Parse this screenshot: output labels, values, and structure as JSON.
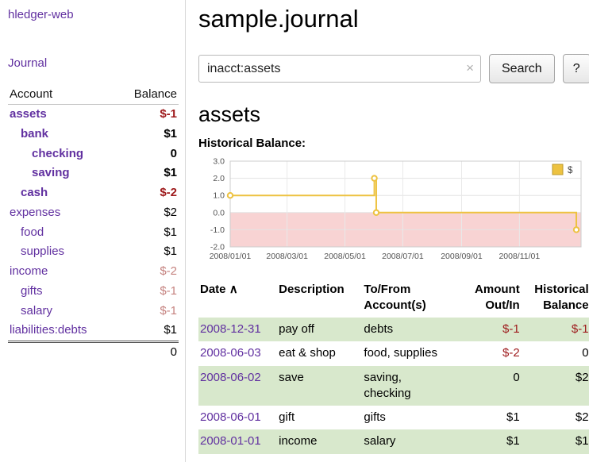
{
  "colors": {
    "link_purple": "#6130a0",
    "negative_strong": "#9e1a1c",
    "negative_faded": "#c5827f",
    "row_green": "#d8e8cc",
    "chart_line": "#edc240",
    "chart_negative_region": "#f8d3d3"
  },
  "sidebar": {
    "app_title": "hledger-web",
    "journal_link": "Journal",
    "accounts": {
      "header_account": "Account",
      "header_balance": "Balance",
      "rows": [
        {
          "name": "assets",
          "balance": "$-1",
          "indent": 0,
          "bold": true
        },
        {
          "name": "bank",
          "balance": "$1",
          "indent": 1,
          "bold": true
        },
        {
          "name": "checking",
          "balance": "0",
          "indent": 2,
          "bold": true
        },
        {
          "name": "saving",
          "balance": "$1",
          "indent": 2,
          "bold": true
        },
        {
          "name": "cash",
          "balance": "$-2",
          "indent": 1,
          "bold": true
        },
        {
          "name": "expenses",
          "balance": "$2",
          "indent": 0,
          "bold": false
        },
        {
          "name": "food",
          "balance": "$1",
          "indent": 1,
          "bold": false
        },
        {
          "name": "supplies",
          "balance": "$1",
          "indent": 1,
          "bold": false
        },
        {
          "name": "income",
          "balance": "$-2",
          "indent": 0,
          "bold": false
        },
        {
          "name": "gifts",
          "balance": "$-1",
          "indent": 1,
          "bold": false
        },
        {
          "name": "salary",
          "balance": "$-1",
          "indent": 1,
          "bold": false
        },
        {
          "name": "liabilities:debts",
          "balance": "$1",
          "indent": 0,
          "bold": false
        }
      ],
      "total": "0"
    }
  },
  "main": {
    "page_title": "sample.journal",
    "search": {
      "value": "inacct:assets",
      "clear_icon": "×",
      "search_button": "Search",
      "help_button": "?"
    },
    "account_heading": "assets",
    "chart_title": "Historical Balance:"
  },
  "chart_data": {
    "type": "line",
    "title": "Historical Balance:",
    "step": true,
    "series": [
      {
        "name": "$",
        "color": "#edc240",
        "points": [
          [
            "2008-01-01",
            1
          ],
          [
            "2008-06-01",
            2
          ],
          [
            "2008-06-03",
            0
          ],
          [
            "2008-12-31",
            -1
          ]
        ]
      }
    ],
    "ylim": [
      -2,
      3
    ],
    "yticks": [
      "3.0",
      "2.0",
      "1.0",
      "0.0",
      "-1.0",
      "-2.0"
    ],
    "xtick_labels": [
      "2008/01/01",
      "2008/03/01",
      "2008/05/01",
      "2008/07/01",
      "2008/09/01",
      "2008/11/01"
    ],
    "xtick_dates": [
      "2008-01-01",
      "2008-03-01",
      "2008-05-01",
      "2008-07-01",
      "2008-09-01",
      "2008-11-01"
    ],
    "x_range": [
      "2008-01-01",
      "2009-01-05"
    ],
    "grid": true,
    "legend_position": "top-right",
    "legend": [
      "$"
    ],
    "negative_region": {
      "from": 0,
      "to": -2,
      "color": "#f8d3d3"
    }
  },
  "register": {
    "headers": {
      "date": "Date",
      "sort_caret": "∧",
      "description": "Description",
      "tofrom": "To/From\nAccount(s)",
      "amount": "Amount\nOut/In",
      "balance": "Historical\nBalance"
    },
    "rows": [
      {
        "date": "2008-12-31",
        "description": "pay off",
        "tofrom": "debts",
        "amount": "$-1",
        "balance": "$-1"
      },
      {
        "date": "2008-06-03",
        "description": "eat & shop",
        "tofrom": "food, supplies",
        "amount": "$-2",
        "balance": "0"
      },
      {
        "date": "2008-06-02",
        "description": "save",
        "tofrom": "saving,\nchecking",
        "amount": "0",
        "balance": "$2"
      },
      {
        "date": "2008-06-01",
        "description": "gift",
        "tofrom": "gifts",
        "amount": "$1",
        "balance": "$2"
      },
      {
        "date": "2008-01-01",
        "description": "income",
        "tofrom": "salary",
        "amount": "$1",
        "balance": "$1"
      }
    ]
  }
}
